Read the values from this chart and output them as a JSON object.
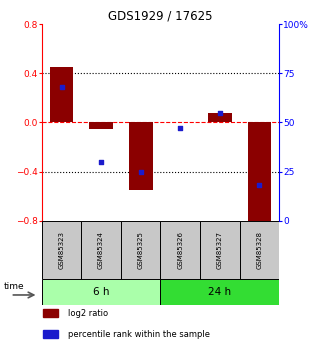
{
  "title": "GDS1929 / 17625",
  "samples": [
    "GSM85323",
    "GSM85324",
    "GSM85325",
    "GSM85326",
    "GSM85327",
    "GSM85328"
  ],
  "log2_ratio": [
    0.45,
    -0.05,
    -0.55,
    0.0,
    0.08,
    -0.85
  ],
  "percentile_rank": [
    68,
    30,
    25,
    47,
    55,
    18
  ],
  "left_ylim": [
    -0.8,
    0.8
  ],
  "right_ylim": [
    0,
    100
  ],
  "left_yticks": [
    -0.8,
    -0.4,
    0.0,
    0.4,
    0.8
  ],
  "right_yticks": [
    0,
    25,
    50,
    75,
    100
  ],
  "right_yticklabels": [
    "0",
    "25",
    "50",
    "75",
    "100%"
  ],
  "hline_dotted": [
    -0.4,
    0.4
  ],
  "hline_dashed_red": 0.0,
  "bar_color": "#8B0000",
  "dot_color": "#1B1BCC",
  "group1_label": "6 h",
  "group2_label": "24 h",
  "time_label": "time",
  "legend_bar_label": "log2 ratio",
  "legend_dot_label": "percentile rank within the sample",
  "light_green": "#AAFFAA",
  "dark_green": "#33DD33",
  "sample_box_color": "#C8C8C8",
  "bar_width": 0.6
}
